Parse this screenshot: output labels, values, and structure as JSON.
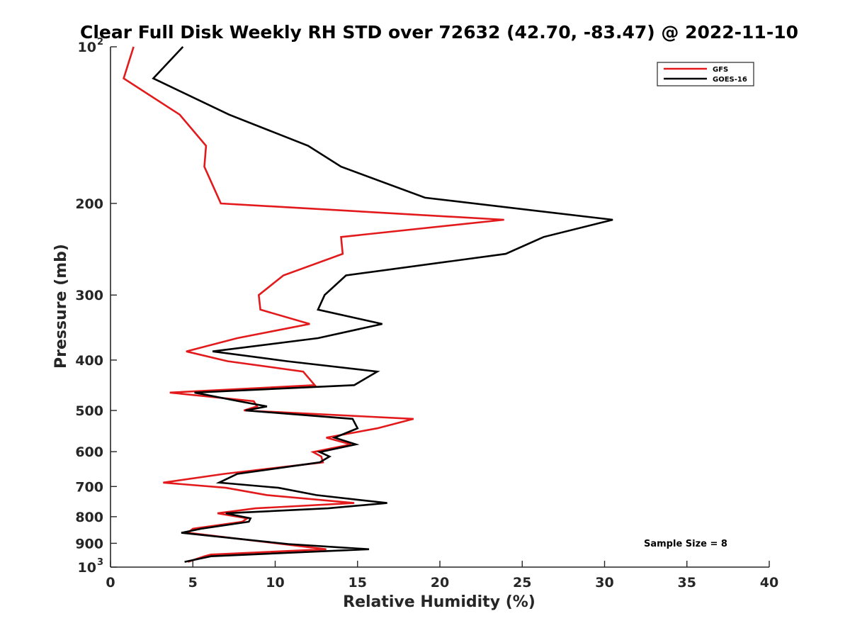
{
  "chart_data": {
    "type": "line",
    "title": "Clear Full Disk Weekly RH STD over 72632 (42.70, -83.47) @ 2022-11-10",
    "xlabel": "Relative Humidity (%)",
    "ylabel": "Pressure (mb)",
    "xlim": [
      0,
      40
    ],
    "ylim": [
      100,
      1000
    ],
    "y_scale": "log",
    "y_reversed": true,
    "x_ticks": [
      "0",
      "5",
      "10",
      "15",
      "20",
      "25",
      "30",
      "35",
      "40"
    ],
    "y_ticks": [
      {
        "value": 100,
        "label": "10",
        "exp": "2"
      },
      {
        "value": 200,
        "label": "200"
      },
      {
        "value": 300,
        "label": "300"
      },
      {
        "value": 400,
        "label": "400"
      },
      {
        "value": 500,
        "label": "500"
      },
      {
        "value": 600,
        "label": "600"
      },
      {
        "value": 700,
        "label": "700"
      },
      {
        "value": 800,
        "label": "800"
      },
      {
        "value": 900,
        "label": "900"
      },
      {
        "value": 1000,
        "label": "10",
        "exp": "3"
      }
    ],
    "legend": "top-right",
    "annotation": "Sample Size = 8",
    "series": [
      {
        "name": "GFS",
        "color": "#e31a1c",
        "points": [
          [
            1.4,
            100
          ],
          [
            0.8,
            115
          ],
          [
            4.2,
            135
          ],
          [
            5.8,
            155
          ],
          [
            5.7,
            170
          ],
          [
            6.7,
            200
          ],
          [
            23.9,
            215
          ],
          [
            14.0,
            232
          ],
          [
            14.1,
            250
          ],
          [
            10.5,
            275
          ],
          [
            9.0,
            300
          ],
          [
            9.1,
            320
          ],
          [
            12.1,
            341
          ],
          [
            7.7,
            363
          ],
          [
            4.6,
            385
          ],
          [
            7.1,
            402
          ],
          [
            11.7,
            421
          ],
          [
            12.4,
            447
          ],
          [
            3.6,
            462
          ],
          [
            8.7,
            480
          ],
          [
            8.9,
            491
          ],
          [
            8.1,
            500
          ],
          [
            18.4,
            519
          ],
          [
            16.2,
            541
          ],
          [
            13.1,
            564
          ],
          [
            14.6,
            581
          ],
          [
            12.3,
            601
          ],
          [
            12.8,
            613
          ],
          [
            12.9,
            629
          ],
          [
            6.9,
            662
          ],
          [
            3.2,
            688
          ],
          [
            7.0,
            704
          ],
          [
            9.5,
            727
          ],
          [
            14.8,
            753
          ],
          [
            8.8,
            771
          ],
          [
            6.5,
            788
          ],
          [
            8.3,
            806
          ],
          [
            8.0,
            818
          ],
          [
            5.0,
            844
          ],
          [
            4.7,
            859
          ],
          [
            13.1,
            924
          ],
          [
            6.1,
            946
          ],
          [
            5.7,
            953
          ],
          [
            4.7,
            977
          ]
        ]
      },
      {
        "name": "GOES-16",
        "color": "#000000",
        "points": [
          [
            4.4,
            100
          ],
          [
            2.6,
            115
          ],
          [
            7.2,
            135
          ],
          [
            12.0,
            155
          ],
          [
            14.0,
            170
          ],
          [
            19.1,
            195
          ],
          [
            30.5,
            215
          ],
          [
            26.3,
            232
          ],
          [
            24.0,
            250
          ],
          [
            14.3,
            275
          ],
          [
            13.0,
            300
          ],
          [
            12.6,
            320
          ],
          [
            16.5,
            341
          ],
          [
            12.6,
            363
          ],
          [
            6.2,
            385
          ],
          [
            10.7,
            402
          ],
          [
            16.2,
            421
          ],
          [
            14.8,
            447
          ],
          [
            5.1,
            462
          ],
          [
            7.8,
            480
          ],
          [
            9.5,
            491
          ],
          [
            8.2,
            500
          ],
          [
            14.7,
            519
          ],
          [
            15.0,
            541
          ],
          [
            13.6,
            564
          ],
          [
            14.9,
            581
          ],
          [
            12.7,
            601
          ],
          [
            13.3,
            613
          ],
          [
            12.7,
            629
          ],
          [
            7.7,
            662
          ],
          [
            6.6,
            688
          ],
          [
            10.2,
            704
          ],
          [
            12.5,
            727
          ],
          [
            16.8,
            753
          ],
          [
            13.2,
            771
          ],
          [
            7.0,
            788
          ],
          [
            8.5,
            806
          ],
          [
            8.4,
            818
          ],
          [
            5.5,
            844
          ],
          [
            4.3,
            859
          ],
          [
            10.8,
            903
          ],
          [
            15.7,
            924
          ],
          [
            8.4,
            946
          ],
          [
            6.1,
            953
          ],
          [
            4.5,
            977
          ]
        ]
      }
    ]
  }
}
